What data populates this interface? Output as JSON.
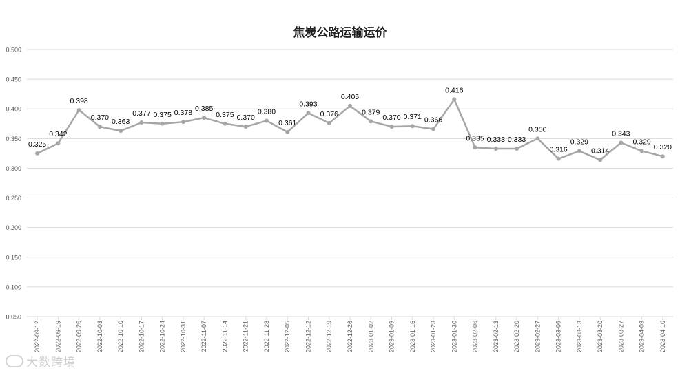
{
  "chart_data": {
    "type": "line",
    "title": "焦炭公路运输运价",
    "xlabel": "",
    "ylabel": "",
    "ylim": [
      0.05,
      0.5
    ],
    "yticks": [
      "0.050",
      "0.100",
      "0.150",
      "0.200",
      "0.250",
      "0.300",
      "0.350",
      "0.400",
      "0.450",
      "0.500"
    ],
    "ytick_values": [
      0.05,
      0.1,
      0.15,
      0.2,
      0.25,
      0.3,
      0.35,
      0.4,
      0.45,
      0.5
    ],
    "grid": true,
    "legend": "none",
    "categories": [
      "2022-09-12",
      "2022-09-19",
      "2022-09-26",
      "2022-10-03",
      "2022-10-10",
      "2022-10-17",
      "2022-10-24",
      "2022-10-31",
      "2022-11-07",
      "2022-11-14",
      "2022-11-21",
      "2022-11-28",
      "2022-12-05",
      "2022-12-12",
      "2022-12-19",
      "2022-12-26",
      "2023-01-02",
      "2023-01-09",
      "2023-01-16",
      "2023-01-23",
      "2023-01-30",
      "2023-02-06",
      "2023-02-13",
      "2023-02-20",
      "2023-02-27",
      "2023-03-06",
      "2023-03-13",
      "2023-03-20",
      "2023-03-27",
      "2023-04-03",
      "2023-04-10"
    ],
    "series": [
      {
        "values": [
          0.325,
          0.342,
          0.398,
          0.37,
          0.363,
          0.377,
          0.375,
          0.378,
          0.385,
          0.375,
          0.37,
          0.38,
          0.361,
          0.393,
          0.376,
          0.405,
          0.379,
          0.37,
          0.371,
          0.366,
          0.416,
          0.335,
          0.333,
          0.333,
          0.35,
          0.316,
          0.329,
          0.314,
          0.343,
          0.329,
          0.32
        ],
        "labels": [
          "0.325",
          "0.342",
          "0.398",
          "0.370",
          "0.363",
          "0.377",
          "0.375",
          "0.378",
          "0.385",
          "0.375",
          "0.370",
          "0.380",
          "0.361",
          "0.393",
          "0.376",
          "0.405",
          "0.379",
          "0.370",
          "0.371",
          "0.366",
          "0.416",
          "0.335",
          "0.333",
          "0.333",
          "0.350",
          "0.316",
          "0.329",
          "0.314",
          "0.343",
          "0.329",
          "0.320"
        ]
      }
    ],
    "colors": {
      "line": "#a6a6a6",
      "grid": "#d9d9d9",
      "text": "#000000"
    }
  },
  "watermark": {
    "text": "大数跨境"
  }
}
